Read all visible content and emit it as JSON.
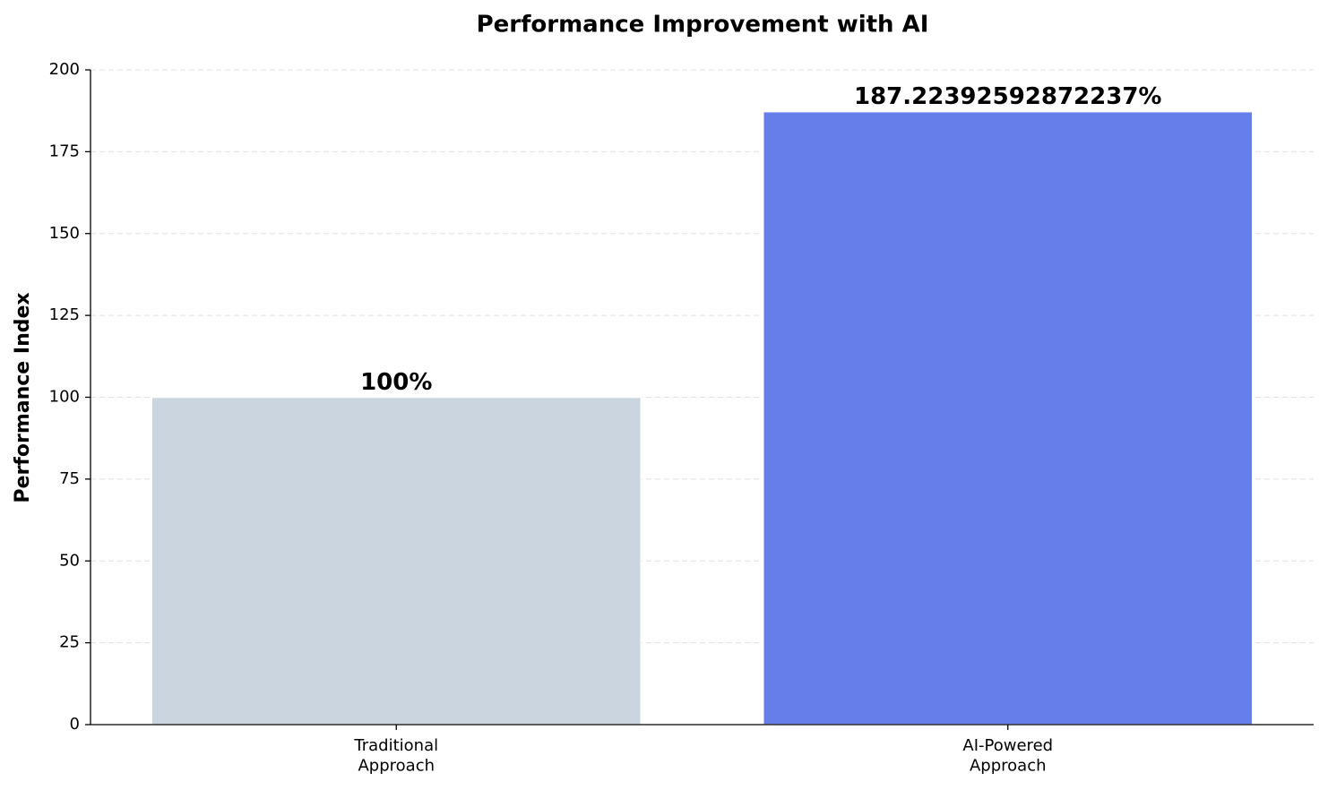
{
  "chart_data": {
    "type": "bar",
    "title": "Performance Improvement with AI",
    "y_label": "Performance Index",
    "categories": [
      "Traditional\nApproach",
      "AI-Powered\nApproach"
    ],
    "values": [
      100,
      187.22392592872237
    ],
    "value_labels": [
      "100%",
      "187.22392592872237%"
    ],
    "colors": [
      "#cbd5e0",
      "#667eea"
    ],
    "ylim": [
      0,
      200
    ],
    "yticks": [
      0,
      25,
      50,
      75,
      100,
      125,
      150,
      175,
      200
    ],
    "grid": true
  }
}
